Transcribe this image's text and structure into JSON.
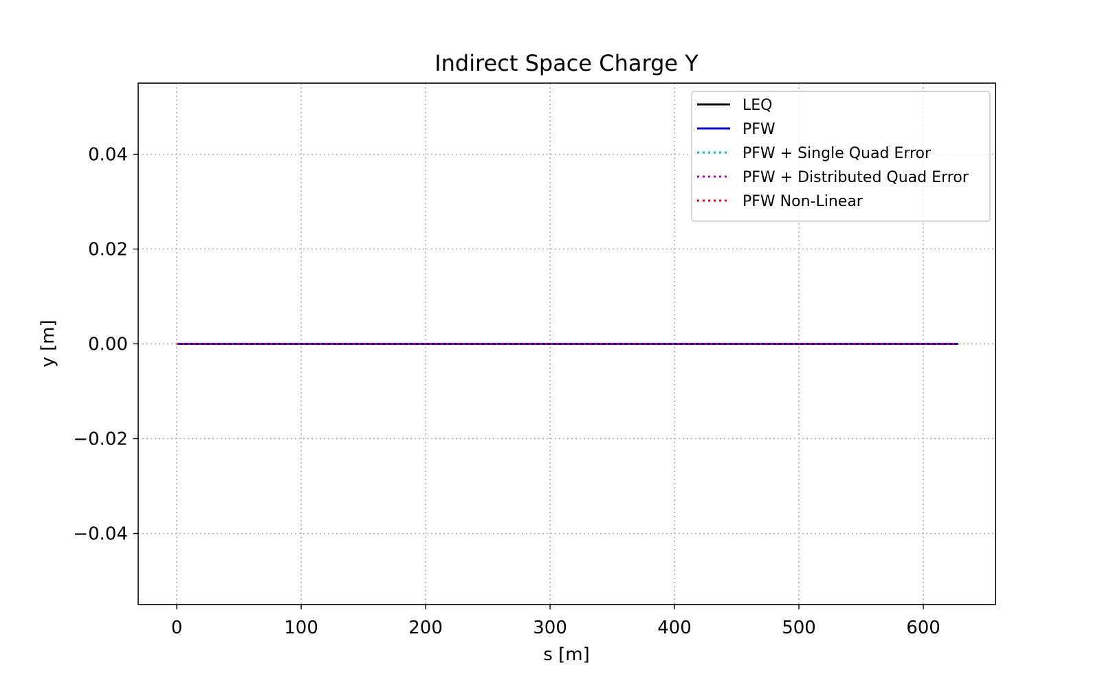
{
  "chart_data": {
    "type": "line",
    "title": "Indirect Space Charge Y",
    "xlabel": "s [m]",
    "ylabel": "y [m]",
    "xlim": [
      -31,
      658
    ],
    "ylim": [
      -0.055,
      0.055
    ],
    "xticks": [
      0,
      100,
      200,
      300,
      400,
      500,
      600
    ],
    "xtick_labels": [
      "0",
      "100",
      "200",
      "300",
      "400",
      "500",
      "600"
    ],
    "yticks": [
      -0.04,
      -0.02,
      0.0,
      0.02,
      0.04
    ],
    "ytick_labels": [
      "−0.04",
      "−0.02",
      "0.00",
      "0.02",
      "0.04"
    ],
    "grid": true,
    "legend_position": "top-right",
    "series": [
      {
        "name": "LEQ",
        "color": "#000000",
        "style": "solid",
        "x": [
          0,
          628
        ],
        "y": [
          0,
          0
        ]
      },
      {
        "name": "PFW",
        "color": "#0000ff",
        "style": "solid",
        "x": [
          0,
          628
        ],
        "y": [
          0,
          0
        ]
      },
      {
        "name": "PFW + Single Quad Error",
        "color": "#00bfbf",
        "style": "dotted",
        "x": [
          0,
          628
        ],
        "y": [
          0,
          0
        ]
      },
      {
        "name": "PFW + Distributed Quad Error",
        "color": "#bf00bf",
        "style": "dotted",
        "x": [
          0,
          628
        ],
        "y": [
          0,
          0
        ]
      },
      {
        "name": "PFW Non-Linear",
        "color": "#ff0000",
        "style": "dotted",
        "x": [
          0,
          628
        ],
        "y": [
          0,
          0
        ]
      }
    ]
  }
}
